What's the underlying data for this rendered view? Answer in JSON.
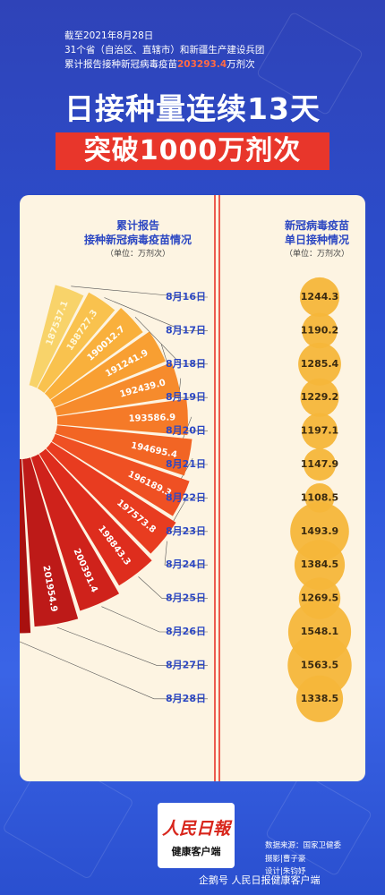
{
  "header": {
    "line1": "截至2021年8月28日",
    "line2": "31个省（自治区、直辖市）和新疆生产建设兵团",
    "line3_prefix": "累计报告接种新冠病毒疫苗",
    "line3_value": "203293.4",
    "line3_suffix": "万剂次"
  },
  "title": {
    "line1": "日接种量连续13天",
    "line2": "突破1000万剂次"
  },
  "left_section": {
    "title1": "累计报告",
    "title2": "接种新冠病毒疫苗情况",
    "unit": "（单位：万剂次）"
  },
  "right_section": {
    "title1": "新冠病毒疫苗",
    "title2": "单日接种情况",
    "unit": "（单位：万剂次）"
  },
  "chart_data": {
    "type": "bar",
    "categories": [
      "8月16日",
      "8月17日",
      "8月18日",
      "8月19日",
      "8月20日",
      "8月21日",
      "8月22日",
      "8月23日",
      "8月24日",
      "8月25日",
      "8月26日",
      "8月27日",
      "8月28日"
    ],
    "series": [
      {
        "name": "累计报告接种新冠病毒疫苗情况",
        "values": [
          187537.1,
          188727.3,
          190012.7,
          191241.9,
          192439.0,
          193586.9,
          194695.4,
          196189.3,
          197573.8,
          198843.3,
          200391.4,
          201954.9,
          203293.4
        ]
      },
      {
        "name": "新冠病毒疫苗单日接种情况",
        "values": [
          1244.3,
          1190.2,
          1285.4,
          1229.2,
          1197.1,
          1147.9,
          1108.5,
          1493.9,
          1384.5,
          1269.5,
          1548.1,
          1563.5,
          1338.5
        ]
      }
    ],
    "value_labels_cumulative": [
      "187537.1",
      "188727.3",
      "190012.7",
      "191241.9",
      "192439.0",
      "193586.9",
      "194695.4",
      "196189.3",
      "197573.8",
      "198843.3",
      "200391.4",
      "201954.9",
      "203293.4"
    ],
    "value_labels_daily": [
      "1244.3",
      "1190.2",
      "1285.4",
      "1229.2",
      "1197.1",
      "1147.9",
      "1108.5",
      "1493.9",
      "1384.5",
      "1269.5",
      "1548.1",
      "1563.5",
      "1338.5"
    ],
    "colors": [
      "#f8d36a",
      "#f9c24e",
      "#f9b03c",
      "#f89f32",
      "#f68b2c",
      "#f57a28",
      "#f26524",
      "#ef5023",
      "#e83c20",
      "#de2d1d",
      "#cf221b",
      "#bd1a18",
      "#a8100f"
    ],
    "circle_color": "#f5b63a",
    "timeline_color": "#e8362b"
  },
  "footer": {
    "logo_top": "人民日報",
    "logo_bottom": "健康客户端",
    "credit1": "数据来源：国家卫健委",
    "credit2": "摄影|曹子豪",
    "credit3": "设计|朱钧妤",
    "watermark": "企鹅号 人民日报健康客户端"
  }
}
